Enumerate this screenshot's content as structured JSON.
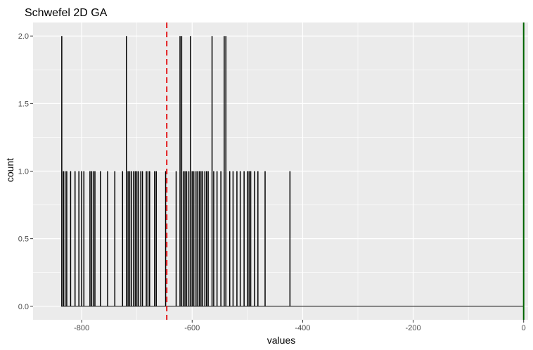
{
  "chart_data": {
    "type": "bar",
    "title": "Schwefel 2D GA",
    "xlabel": "values",
    "ylabel": "count",
    "xlim": [
      -888,
      8
    ],
    "ylim": [
      -0.1,
      2.1
    ],
    "x_ticks": [
      -800,
      -600,
      -400,
      -200,
      0
    ],
    "x_tick_labels": [
      "-800",
      "-600",
      "-400",
      "-200",
      "0"
    ],
    "y_ticks": [
      0,
      0.5,
      1,
      1.5,
      2
    ],
    "y_tick_labels": [
      "0.0",
      "0.5",
      "1.0",
      "1.5",
      "2.0"
    ],
    "grid": true,
    "background": "#ebebeb",
    "bar_color": "#000000",
    "mean_line": {
      "x": -646,
      "color": "#e31a1c",
      "style": "dashed"
    },
    "optimum_line": {
      "x": 0,
      "color": "#006400",
      "style": "solid"
    },
    "bins": [
      {
        "x": -836,
        "count": 2
      },
      {
        "x": -833,
        "count": 1
      },
      {
        "x": -830,
        "count": 1
      },
      {
        "x": -827,
        "count": 1
      },
      {
        "x": -820,
        "count": 1
      },
      {
        "x": -812,
        "count": 1
      },
      {
        "x": -805,
        "count": 1
      },
      {
        "x": -800,
        "count": 1
      },
      {
        "x": -796,
        "count": 1
      },
      {
        "x": -785,
        "count": 1
      },
      {
        "x": -782,
        "count": 1
      },
      {
        "x": -779,
        "count": 1
      },
      {
        "x": -776,
        "count": 1
      },
      {
        "x": -766,
        "count": 1
      },
      {
        "x": -753,
        "count": 1
      },
      {
        "x": -740,
        "count": 1
      },
      {
        "x": -726,
        "count": 1
      },
      {
        "x": -719,
        "count": 2
      },
      {
        "x": -716,
        "count": 1
      },
      {
        "x": -713,
        "count": 1
      },
      {
        "x": -710,
        "count": 1
      },
      {
        "x": -706,
        "count": 1
      },
      {
        "x": -703,
        "count": 1
      },
      {
        "x": -700,
        "count": 1
      },
      {
        "x": -697,
        "count": 1
      },
      {
        "x": -693,
        "count": 1
      },
      {
        "x": -690,
        "count": 1
      },
      {
        "x": -683,
        "count": 1
      },
      {
        "x": -680,
        "count": 1
      },
      {
        "x": -677,
        "count": 1
      },
      {
        "x": -668,
        "count": 1
      },
      {
        "x": -665,
        "count": 1
      },
      {
        "x": -648,
        "count": 1
      },
      {
        "x": -629,
        "count": 1
      },
      {
        "x": -622,
        "count": 2
      },
      {
        "x": -619,
        "count": 2
      },
      {
        "x": -616,
        "count": 1
      },
      {
        "x": -613,
        "count": 1
      },
      {
        "x": -610,
        "count": 1
      },
      {
        "x": -606,
        "count": 1
      },
      {
        "x": -603,
        "count": 2
      },
      {
        "x": -600,
        "count": 1
      },
      {
        "x": -597,
        "count": 1
      },
      {
        "x": -593,
        "count": 1
      },
      {
        "x": -590,
        "count": 1
      },
      {
        "x": -587,
        "count": 1
      },
      {
        "x": -584,
        "count": 1
      },
      {
        "x": -581,
        "count": 1
      },
      {
        "x": -577,
        "count": 1
      },
      {
        "x": -574,
        "count": 1
      },
      {
        "x": -571,
        "count": 1
      },
      {
        "x": -564,
        "count": 2
      },
      {
        "x": -561,
        "count": 1
      },
      {
        "x": -555,
        "count": 1
      },
      {
        "x": -548,
        "count": 1
      },
      {
        "x": -542,
        "count": 2
      },
      {
        "x": -539,
        "count": 2
      },
      {
        "x": -532,
        "count": 1
      },
      {
        "x": -526,
        "count": 1
      },
      {
        "x": -519,
        "count": 1
      },
      {
        "x": -513,
        "count": 1
      },
      {
        "x": -506,
        "count": 1
      },
      {
        "x": -500,
        "count": 1
      },
      {
        "x": -497,
        "count": 1
      },
      {
        "x": -494,
        "count": 1
      },
      {
        "x": -487,
        "count": 1
      },
      {
        "x": -481,
        "count": 1
      },
      {
        "x": -468,
        "count": 1
      },
      {
        "x": -423,
        "count": 1
      }
    ]
  }
}
